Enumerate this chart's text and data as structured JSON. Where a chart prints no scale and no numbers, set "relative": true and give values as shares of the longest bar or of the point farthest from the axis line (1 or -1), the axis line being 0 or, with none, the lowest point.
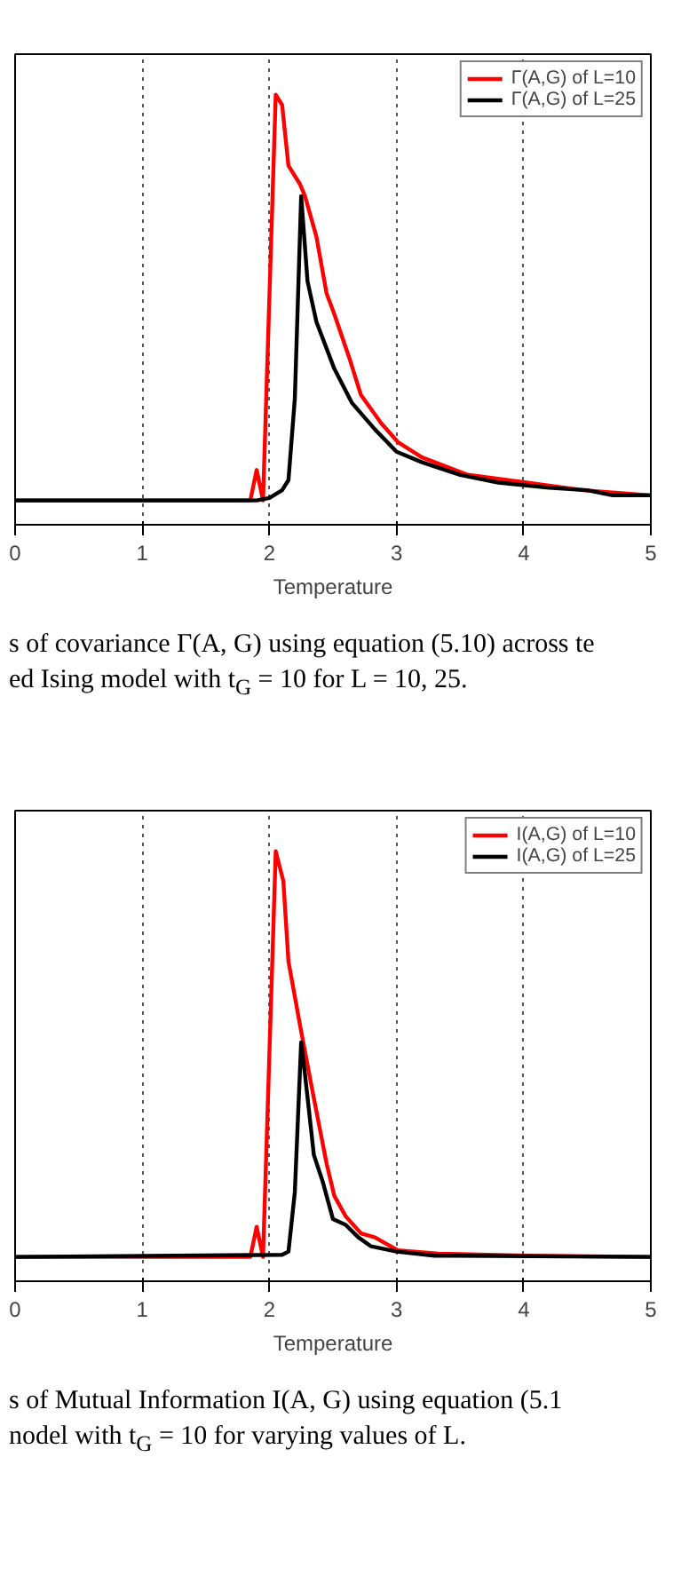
{
  "chart_data": [
    {
      "type": "line",
      "xlabel": "Temperature",
      "relative": true,
      "xlim": [
        0,
        5
      ],
      "xticks": [
        0,
        1,
        2,
        3,
        4,
        5
      ],
      "grid": "x",
      "legend": "top right",
      "line_style": "solid",
      "annotations": [
        "s of covariance Γ(A, G) using equation (5.10) across te",
        "ed Ising model with t$_{G}$ = 10 for L = 10, 25."
      ],
      "series": [
        {
          "name": "Γ(A,G) of L=10",
          "color": "#ff0000",
          "x": [
            0,
            1.85,
            1.9,
            1.95,
            2.05,
            2.1,
            2.15,
            2.24,
            2.28,
            2.37,
            2.45,
            2.51,
            2.63,
            2.72,
            2.88,
            3.01,
            3.2,
            3.56,
            4.02,
            4.47,
            5
          ],
          "values": [
            0,
            0,
            0.075,
            0,
            1.0,
            0.975,
            0.825,
            0.78,
            0.75,
            0.65,
            0.51,
            0.46,
            0.35,
            0.26,
            0.19,
            0.144,
            0.106,
            0.063,
            0.044,
            0.025,
            0.0125
          ]
        },
        {
          "name": "Γ(A,G) of L=25",
          "color": "#000000",
          "x": [
            0,
            1.9,
            2.0,
            2.1,
            2.15,
            2.2,
            2.25,
            2.3,
            2.37,
            2.51,
            2.65,
            2.83,
            3.0,
            3.2,
            3.5,
            3.8,
            4.2,
            4.5,
            4.7,
            5
          ],
          "values": [
            0,
            0,
            0.006,
            0.025,
            0.05,
            0.25,
            0.75,
            0.54,
            0.44,
            0.325,
            0.24,
            0.175,
            0.12,
            0.094,
            0.063,
            0.044,
            0.031,
            0.025,
            0.0125,
            0.0125
          ]
        }
      ]
    },
    {
      "type": "line",
      "xlabel": "Temperature",
      "relative": true,
      "xlim": [
        0,
        5
      ],
      "xticks": [
        0,
        1,
        2,
        3,
        4,
        5
      ],
      "grid": "x",
      "legend": "top right",
      "line_style": "solid",
      "annotations": [
        "s of Mutual Information I(A, G) using equation (5.1",
        "nodel with t$_{G}$ = 10 for varying values of L."
      ],
      "series": [
        {
          "name": "I(A,G) of L=10",
          "color": "#ff0000",
          "x": [
            0,
            1.85,
            1.9,
            1.95,
            2.05,
            2.11,
            2.15,
            2.25,
            2.34,
            2.45,
            2.51,
            2.6,
            2.72,
            2.83,
            3.01,
            3.33,
            4.02,
            5
          ],
          "values": [
            0,
            0,
            0.074,
            0,
            1.0,
            0.926,
            0.728,
            0.556,
            0.407,
            0.23,
            0.151,
            0.1,
            0.058,
            0.048,
            0.016,
            0.008,
            0.003,
            0
          ]
        },
        {
          "name": "I(A,G) of L=25",
          "color": "#000000",
          "x": [
            0,
            2.1,
            2.15,
            2.2,
            2.25,
            2.28,
            2.35,
            2.42,
            2.5,
            2.6,
            2.7,
            2.8,
            3.0,
            3.3,
            5
          ],
          "values": [
            0,
            0.005,
            0.013,
            0.159,
            0.529,
            0.45,
            0.251,
            0.185,
            0.093,
            0.079,
            0.048,
            0.026,
            0.013,
            0.003,
            0
          ]
        }
      ]
    }
  ]
}
